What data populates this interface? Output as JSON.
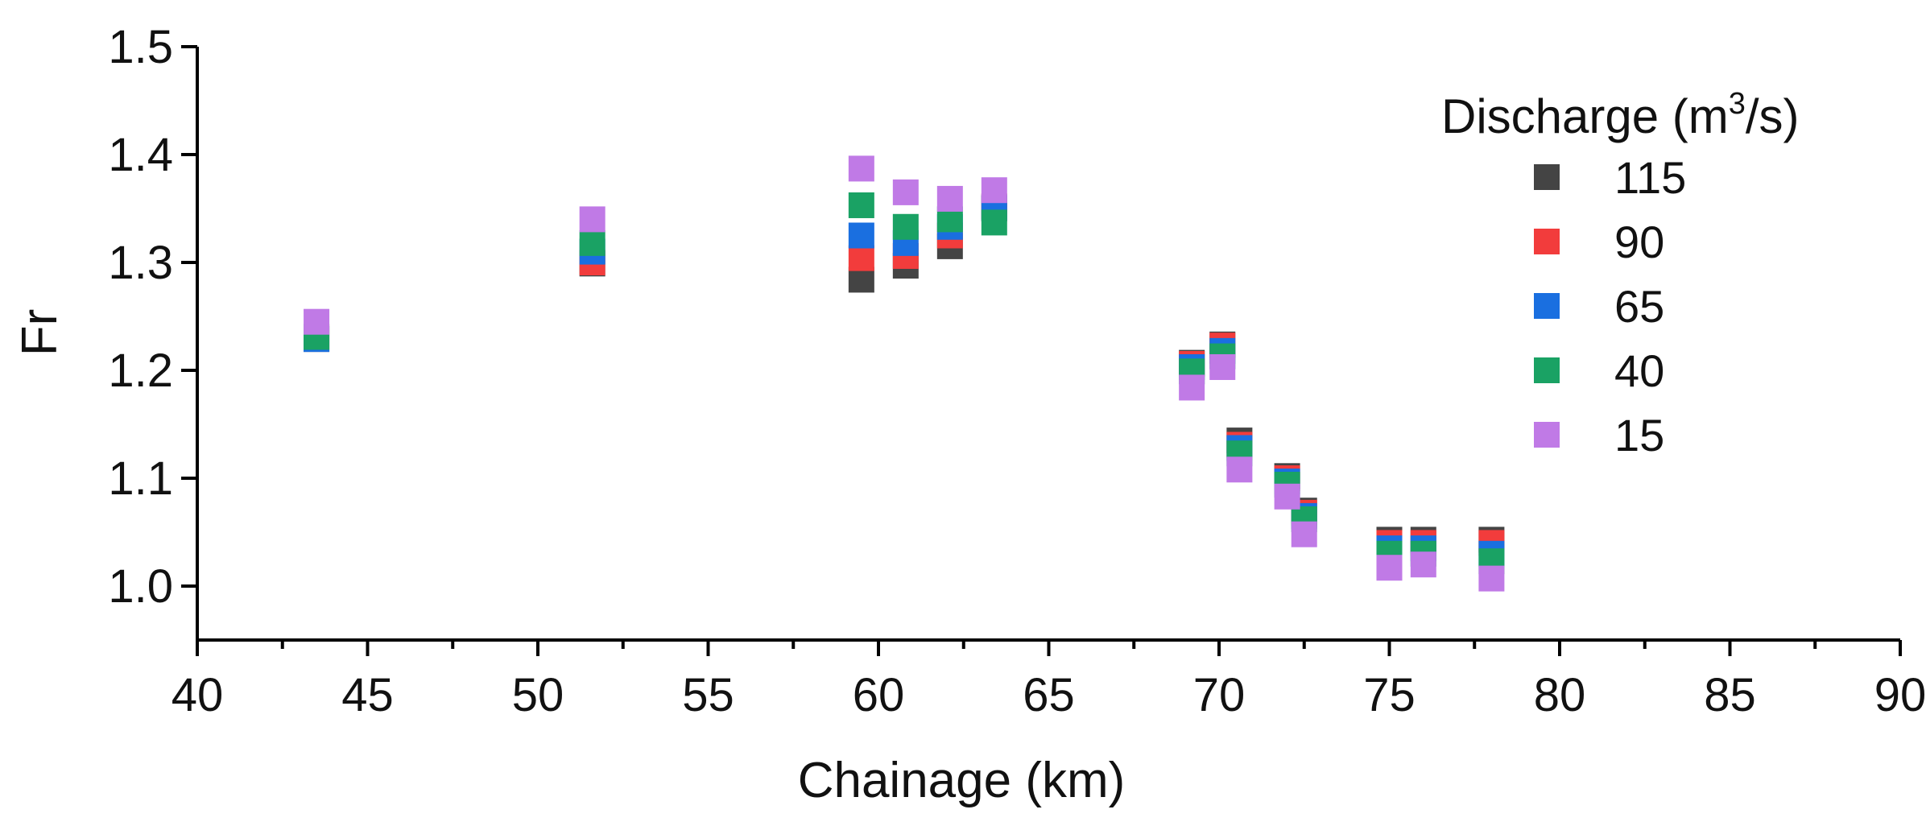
{
  "chart_data": {
    "type": "scatter",
    "xlabel": "Chainage (km)",
    "ylabel": "Fr",
    "xlim": [
      40,
      90
    ],
    "ylim": [
      0.95,
      1.5
    ],
    "x_ticks": [
      40,
      45,
      50,
      55,
      60,
      65,
      70,
      75,
      80,
      85,
      90
    ],
    "x_tick_labels": [
      "40",
      "45",
      "50",
      "55",
      "60",
      "65",
      "70",
      "75",
      "80",
      "85",
      "90"
    ],
    "y_ticks": [
      1.0,
      1.1,
      1.2,
      1.3,
      1.4,
      1.5
    ],
    "y_tick_labels": [
      "1.0",
      "1.1",
      "1.2",
      "1.3",
      "1.4",
      "1.5"
    ],
    "grid": false,
    "legend": {
      "title_text": "Discharge (m",
      "title_sup": "3",
      "title_end": "/s)",
      "placement": "top-right"
    },
    "x": [
      43.5,
      51.6,
      59.5,
      60.8,
      62.1,
      63.4,
      69.2,
      70.1,
      70.6,
      72.0,
      72.5,
      75.0,
      76.0,
      78.0
    ],
    "series": [
      {
        "name": "115",
        "color": "#444444",
        "values": [
          1.229,
          1.299,
          1.284,
          1.297,
          1.315,
          1.35,
          1.207,
          1.224,
          1.135,
          1.102,
          1.07,
          1.043,
          1.043,
          1.043
        ]
      },
      {
        "name": "90",
        "color": "#f23c3c",
        "values": [
          1.231,
          1.3,
          1.304,
          1.306,
          1.325,
          1.352,
          1.206,
          1.223,
          1.131,
          1.1,
          1.068,
          1.04,
          1.04,
          1.04
        ]
      },
      {
        "name": "65",
        "color": "#1a6fe0",
        "values": [
          1.229,
          1.31,
          1.325,
          1.318,
          1.333,
          1.351,
          1.203,
          1.218,
          1.128,
          1.097,
          1.065,
          1.035,
          1.035,
          1.03
        ]
      },
      {
        "name": "40",
        "color": "#1aa264",
        "values": [
          1.231,
          1.318,
          1.353,
          1.333,
          1.34,
          1.337,
          1.199,
          1.213,
          1.123,
          1.094,
          1.062,
          1.03,
          1.03,
          1.023
        ]
      },
      {
        "name": "15",
        "color": "#c07ae6",
        "values": [
          1.245,
          1.34,
          1.387,
          1.365,
          1.359,
          1.367,
          1.184,
          1.203,
          1.108,
          1.083,
          1.048,
          1.017,
          1.02,
          1.007
        ]
      }
    ]
  }
}
